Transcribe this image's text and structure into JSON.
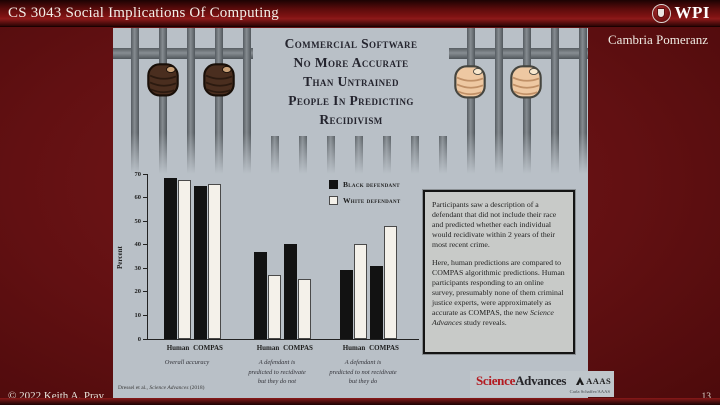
{
  "header": {
    "course_title": "CS 3043 Social Implications Of Computing",
    "wpi_wordmark": "WPI"
  },
  "author": "Cambria Pomeranz",
  "footer": {
    "copyright": "© 2022 Keith A. Pray",
    "page_number": "13"
  },
  "infographic": {
    "title": "Commercial Software\nNo More Accurate\nThan Untrained\nPeople In Predicting\nRecidivism",
    "citation": {
      "part1": "Dressel et al., ",
      "part2_italic": "Science Advances",
      "part3": " (2018)"
    },
    "description": {
      "p1": "Participants saw a description of a defendant that did not include their race and predicted whether each individual would recidivate within 2 years of their most recent crime.",
      "p2_before": "Here, human predictions are compared to COMPAS algorithmic predictions. Human participants responding to an online survey, presumably none of them criminal justice experts, were approximately as accurate as COMPAS, the new ",
      "p2_italic": "Science Advances",
      "p2_after": " study reveals."
    },
    "logo": {
      "science": "Science",
      "advances": "Advances",
      "aaas": "AAAS",
      "credit": "Carla Schaffer/AAAS"
    }
  },
  "chart_data": {
    "type": "bar",
    "ylabel": "Percent",
    "ylim": [
      0,
      70
    ],
    "yticks": [
      0,
      10,
      20,
      30,
      40,
      50,
      60,
      70
    ],
    "grid": false,
    "legend_position": "top-right",
    "legend": [
      "Black defendant",
      "White defendant"
    ],
    "sub_categories": [
      "Human",
      "COMPAS"
    ],
    "groups": [
      {
        "caption": "Overall accuracy",
        "pairs": [
          {
            "label": "Human",
            "black": 68.2,
            "white": 67.6
          },
          {
            "label": "COMPAS",
            "black": 64.9,
            "white": 65.7
          }
        ]
      },
      {
        "caption": "A defendant is\npredicted to recidivate\nbut they do not",
        "pairs": [
          {
            "label": "Human",
            "black": 37.1,
            "white": 27.2
          },
          {
            "label": "COMPAS",
            "black": 40.4,
            "white": 25.4
          }
        ]
      },
      {
        "caption": "A defendant is\npredicted to not recidivate\nbut they do",
        "pairs": [
          {
            "label": "Human",
            "black": 29.2,
            "white": 40.3
          },
          {
            "label": "COMPAS",
            "black": 30.9,
            "white": 47.9
          }
        ]
      }
    ]
  },
  "icons": {
    "wpi_seal_icon": "university shield seal in circle",
    "dark_fist_icon": "dark-skinned fist gripping prison bar",
    "light_fist_icon": "light-skinned fist gripping prison bar",
    "aaas_logo_icon": "AAAS triangle mark"
  },
  "colors": {
    "slide_background": "#621012",
    "header_accent": "#7e1212",
    "image_background": "#b9c0c7",
    "prison_bar": "#6b7176",
    "bar_black": "#121212",
    "bar_white": "#f4f1ea",
    "science_red": "#b3191f",
    "textbox_background": "#c8cac8"
  }
}
